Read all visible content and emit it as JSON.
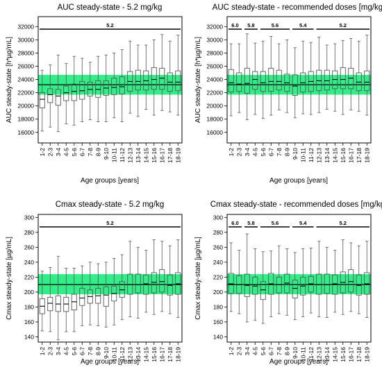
{
  "figure": {
    "background": "#ffffff",
    "band_color": "#33ee88",
    "box_color": "#555555",
    "frame_color": "#000000"
  },
  "chart_data": [
    {
      "type": "boxplot",
      "title": "AUC steady-state - 5.2 mg/kg",
      "ylabel": "AUC steady-state [h*µg/mL]",
      "xlabel": "Age groups [years]",
      "categories": [
        "1-2",
        "2-3",
        "3-4",
        "4-5",
        "5-6",
        "6-7",
        "7-8",
        "8-9",
        "9-10",
        "10-11",
        "11-12",
        "12-13",
        "13-14",
        "14-15",
        "15-16",
        "16-17",
        "17-18",
        "18-19"
      ],
      "ylim": [
        14400,
        33500
      ],
      "yticks": [
        16000,
        18000,
        20000,
        22000,
        24000,
        26000,
        28000,
        30000,
        32000
      ],
      "reference_band": [
        21700,
        24700
      ],
      "reference_line": 23200,
      "dose_segments": [
        {
          "label": "5.2",
          "from": "1-2",
          "to": "18-19"
        }
      ],
      "boxes": [
        {
          "whisker_low": 16200,
          "q1": 19700,
          "median": 21000,
          "q3": 22000,
          "whisker_high": 25400
        },
        {
          "whisker_low": 16800,
          "q1": 20500,
          "median": 21700,
          "q3": 22600,
          "whisker_high": 26200
        },
        {
          "whisker_low": 16100,
          "q1": 20100,
          "median": 21500,
          "q3": 22500,
          "whisker_high": 27700
        },
        {
          "whisker_low": 17300,
          "q1": 20800,
          "median": 22000,
          "q3": 23000,
          "whisker_high": 26400
        },
        {
          "whisker_low": 17100,
          "q1": 20800,
          "median": 22200,
          "q3": 23300,
          "whisker_high": 27500
        },
        {
          "whisker_low": 17600,
          "q1": 21000,
          "median": 22300,
          "q3": 23700,
          "whisker_high": 27200
        },
        {
          "whisker_low": 17900,
          "q1": 21500,
          "median": 22500,
          "q3": 23600,
          "whisker_high": 26600
        },
        {
          "whisker_low": 17600,
          "q1": 21300,
          "median": 22500,
          "q3": 23800,
          "whisker_high": 27500
        },
        {
          "whisker_low": 17600,
          "q1": 21600,
          "median": 22700,
          "q3": 23800,
          "whisker_high": 27700
        },
        {
          "whisker_low": 18200,
          "q1": 21700,
          "median": 22800,
          "q3": 24200,
          "whisker_high": 28000
        },
        {
          "whisker_low": 17600,
          "q1": 21800,
          "median": 22900,
          "q3": 24400,
          "whisker_high": 28500
        },
        {
          "whisker_low": 18900,
          "q1": 22200,
          "median": 23700,
          "q3": 25200,
          "whisker_high": 29800
        },
        {
          "whisker_low": 18400,
          "q1": 22400,
          "median": 23700,
          "q3": 25400,
          "whisker_high": 29200
        },
        {
          "whisker_low": 19500,
          "q1": 22400,
          "median": 23800,
          "q3": 25300,
          "whisker_high": 29200
        },
        {
          "whisker_low": 18600,
          "q1": 22500,
          "median": 24000,
          "q3": 25800,
          "whisker_high": 30000
        },
        {
          "whisker_low": 19300,
          "q1": 22500,
          "median": 24200,
          "q3": 25700,
          "whisker_high": 30800
        },
        {
          "whisker_low": 19100,
          "q1": 22200,
          "median": 23600,
          "q3": 25000,
          "whisker_high": 29800
        },
        {
          "whisker_low": 18600,
          "q1": 22300,
          "median": 23600,
          "q3": 25300,
          "whisker_high": 30700
        }
      ]
    },
    {
      "type": "boxplot",
      "title": "AUC steady-state - recommended doses [mg/kg]",
      "ylabel": "AUC steady-state [h*µg/mL]",
      "xlabel": "Age groups [years]",
      "categories": [
        "1-2",
        "2-3",
        "3-4",
        "4-5",
        "5-6",
        "6-7",
        "7-8",
        "8-9",
        "9-10",
        "10-11",
        "11-12",
        "12-13",
        "13-14",
        "14-15",
        "15-16",
        "16-17",
        "17-18",
        "18-19"
      ],
      "ylim": [
        14400,
        33500
      ],
      "yticks": [
        16000,
        18000,
        20000,
        22000,
        24000,
        26000,
        28000,
        30000,
        32000
      ],
      "reference_band": [
        21700,
        24700
      ],
      "reference_line": 23200,
      "dose_segments": [
        {
          "label": "6.0",
          "from": "1-2",
          "to": "2-3"
        },
        {
          "label": "5.8",
          "from": "3-4",
          "to": "4-5"
        },
        {
          "label": "5.6",
          "from": "5-6",
          "to": "8-9"
        },
        {
          "label": "5.4",
          "from": "9-10",
          "to": "11-12"
        },
        {
          "label": "5.2",
          "from": "12-13",
          "to": "18-19"
        }
      ],
      "boxes": [
        {
          "whisker_low": 18500,
          "q1": 22100,
          "median": 23500,
          "q3": 25500,
          "whisker_high": 29400
        },
        {
          "whisker_low": 19000,
          "q1": 22200,
          "median": 23300,
          "q3": 25000,
          "whisker_high": 29400
        },
        {
          "whisker_low": 17900,
          "q1": 21900,
          "median": 23400,
          "q3": 25700,
          "whisker_high": 30900
        },
        {
          "whisker_low": 18700,
          "q1": 22500,
          "median": 24000,
          "q3": 25200,
          "whisker_high": 29500
        },
        {
          "whisker_low": 18100,
          "q1": 22200,
          "median": 23500,
          "q3": 25200,
          "whisker_high": 29800
        },
        {
          "whisker_low": 18600,
          "q1": 22200,
          "median": 23700,
          "q3": 25700,
          "whisker_high": 30500
        },
        {
          "whisker_low": 19400,
          "q1": 22400,
          "median": 23700,
          "q3": 25400,
          "whisker_high": 29400
        },
        {
          "whisker_low": 19000,
          "q1": 22200,
          "median": 23500,
          "q3": 24800,
          "whisker_high": 30000
        },
        {
          "whisker_low": 18200,
          "q1": 21600,
          "median": 23000,
          "q3": 24700,
          "whisker_high": 28800
        },
        {
          "whisker_low": 18800,
          "q1": 22100,
          "median": 23500,
          "q3": 25000,
          "whisker_high": 29800
        },
        {
          "whisker_low": 18700,
          "q1": 22200,
          "median": 23700,
          "q3": 25200,
          "whisker_high": 29600
        },
        {
          "whisker_low": 19000,
          "q1": 22300,
          "median": 23800,
          "q3": 25400,
          "whisker_high": 30400
        },
        {
          "whisker_low": 19500,
          "q1": 22400,
          "median": 23800,
          "q3": 25400,
          "whisker_high": 29200
        },
        {
          "whisker_low": 19200,
          "q1": 22600,
          "median": 24000,
          "q3": 25300,
          "whisker_high": 29400
        },
        {
          "whisker_low": 18700,
          "q1": 22600,
          "median": 24000,
          "q3": 25800,
          "whisker_high": 29900
        },
        {
          "whisker_low": 19400,
          "q1": 22600,
          "median": 24200,
          "q3": 25700,
          "whisker_high": 30200
        },
        {
          "whisker_low": 19200,
          "q1": 22300,
          "median": 23600,
          "q3": 25000,
          "whisker_high": 29800
        },
        {
          "whisker_low": 18600,
          "q1": 22300,
          "median": 23600,
          "q3": 25300,
          "whisker_high": 30700
        }
      ]
    },
    {
      "type": "boxplot",
      "title": "Cmax steady-state - 5.2 mg/kg",
      "ylabel": "Cmax steady-state [µg/mL]",
      "xlabel": "Age groups [years]",
      "categories": [
        "1-2",
        "2-3",
        "3-4",
        "4-5",
        "5-6",
        "6-7",
        "7-8",
        "8-9",
        "9-10",
        "10-11",
        "11-12",
        "12-13",
        "13-14",
        "14-15",
        "15-16",
        "16-17",
        "17-18",
        "18-19"
      ],
      "ylim": [
        133,
        304
      ],
      "yticks": [
        140,
        160,
        180,
        200,
        220,
        240,
        260,
        280,
        300
      ],
      "reference_band": [
        197,
        224
      ],
      "reference_line": 210,
      "dose_segments": [
        {
          "label": "5.2",
          "from": "1-2",
          "to": "18-19"
        }
      ],
      "boxes": [
        {
          "whisker_low": 148,
          "q1": 171,
          "median": 181,
          "q3": 191,
          "whisker_high": 228
        },
        {
          "whisker_low": 147,
          "q1": 175,
          "median": 185,
          "q3": 193,
          "whisker_high": 233
        },
        {
          "whisker_low": 136,
          "q1": 174,
          "median": 184,
          "q3": 195,
          "whisker_high": 248
        },
        {
          "whisker_low": 147,
          "q1": 174,
          "median": 184,
          "q3": 193,
          "whisker_high": 232
        },
        {
          "whisker_low": 147,
          "q1": 176,
          "median": 187,
          "q3": 197,
          "whisker_high": 232
        },
        {
          "whisker_low": 155,
          "q1": 182,
          "median": 192,
          "q3": 205,
          "whisker_high": 235
        },
        {
          "whisker_low": 156,
          "q1": 185,
          "median": 194,
          "q3": 203,
          "whisker_high": 240
        },
        {
          "whisker_low": 155,
          "q1": 185,
          "median": 195,
          "q3": 205,
          "whisker_high": 238
        },
        {
          "whisker_low": 153,
          "q1": 181,
          "median": 196,
          "q3": 207,
          "whisker_high": 240
        },
        {
          "whisker_low": 156,
          "q1": 188,
          "median": 198,
          "q3": 208,
          "whisker_high": 245
        },
        {
          "whisker_low": 163,
          "q1": 193,
          "median": 203,
          "q3": 214,
          "whisker_high": 250
        },
        {
          "whisker_low": 167,
          "q1": 197,
          "median": 210,
          "q3": 224,
          "whisker_high": 268
        },
        {
          "whisker_low": 165,
          "q1": 199,
          "median": 210,
          "q3": 224,
          "whisker_high": 260
        },
        {
          "whisker_low": 173,
          "q1": 197,
          "median": 211,
          "q3": 223,
          "whisker_high": 256
        },
        {
          "whisker_low": 170,
          "q1": 199,
          "median": 213,
          "q3": 226,
          "whisker_high": 270
        },
        {
          "whisker_low": 174,
          "q1": 200,
          "median": 214,
          "q3": 230,
          "whisker_high": 268
        },
        {
          "whisker_low": 171,
          "q1": 196,
          "median": 209,
          "q3": 223,
          "whisker_high": 262
        },
        {
          "whisker_low": 166,
          "q1": 197,
          "median": 211,
          "q3": 226,
          "whisker_high": 270
        }
      ]
    },
    {
      "type": "boxplot",
      "title": "Cmax steady-state - recommended doses [mg/kg]",
      "ylabel": "Cmax steady-state [µg/mL]",
      "xlabel": "Age groups [years]",
      "categories": [
        "1-2",
        "2-3",
        "3-4",
        "4-5",
        "5-6",
        "6-7",
        "7-8",
        "8-9",
        "9-10",
        "10-11",
        "11-12",
        "12-13",
        "13-14",
        "14-15",
        "15-16",
        "16-17",
        "17-18",
        "18-19"
      ],
      "ylim": [
        133,
        304
      ],
      "yticks": [
        140,
        160,
        180,
        200,
        220,
        240,
        260,
        280,
        300
      ],
      "reference_band": [
        197,
        224
      ],
      "reference_line": 210,
      "dose_segments": [
        {
          "label": "6.0",
          "from": "1-2",
          "to": "2-3"
        },
        {
          "label": "5.8",
          "from": "3-4",
          "to": "4-5"
        },
        {
          "label": "5.6",
          "from": "5-6",
          "to": "8-9"
        },
        {
          "label": "5.4",
          "from": "9-10",
          "to": "11-12"
        },
        {
          "label": "5.2",
          "from": "12-13",
          "to": "18-19"
        }
      ],
      "boxes": [
        {
          "whisker_low": 174,
          "q1": 198,
          "median": 211,
          "q3": 225,
          "whisker_high": 266
        },
        {
          "whisker_low": 171,
          "q1": 198,
          "median": 210,
          "q3": 222,
          "whisker_high": 256
        },
        {
          "whisker_low": 160,
          "q1": 194,
          "median": 209,
          "q3": 224,
          "whisker_high": 278
        },
        {
          "whisker_low": 162,
          "q1": 197,
          "median": 208,
          "q3": 220,
          "whisker_high": 258
        },
        {
          "whisker_low": 158,
          "q1": 190,
          "median": 203,
          "q3": 214,
          "whisker_high": 254
        },
        {
          "whisker_low": 167,
          "q1": 197,
          "median": 211,
          "q3": 225,
          "whisker_high": 255
        },
        {
          "whisker_low": 171,
          "q1": 199,
          "median": 210,
          "q3": 220,
          "whisker_high": 262
        },
        {
          "whisker_low": 169,
          "q1": 199,
          "median": 212,
          "q3": 224,
          "whisker_high": 258
        },
        {
          "whisker_low": 163,
          "q1": 192,
          "median": 205,
          "q3": 216,
          "whisker_high": 253
        },
        {
          "whisker_low": 167,
          "q1": 196,
          "median": 208,
          "q3": 220,
          "whisker_high": 258
        },
        {
          "whisker_low": 172,
          "q1": 200,
          "median": 211,
          "q3": 221,
          "whisker_high": 259
        },
        {
          "whisker_low": 167,
          "q1": 197,
          "median": 210,
          "q3": 224,
          "whisker_high": 268
        },
        {
          "whisker_low": 166,
          "q1": 198,
          "median": 210,
          "q3": 224,
          "whisker_high": 260
        },
        {
          "whisker_low": 173,
          "q1": 197,
          "median": 211,
          "q3": 223,
          "whisker_high": 256
        },
        {
          "whisker_low": 170,
          "q1": 199,
          "median": 213,
          "q3": 227,
          "whisker_high": 270
        },
        {
          "whisker_low": 174,
          "q1": 200,
          "median": 214,
          "q3": 230,
          "whisker_high": 266
        },
        {
          "whisker_low": 171,
          "q1": 196,
          "median": 209,
          "q3": 223,
          "whisker_high": 262
        },
        {
          "whisker_low": 166,
          "q1": 197,
          "median": 211,
          "q3": 226,
          "whisker_high": 268
        }
      ]
    }
  ]
}
